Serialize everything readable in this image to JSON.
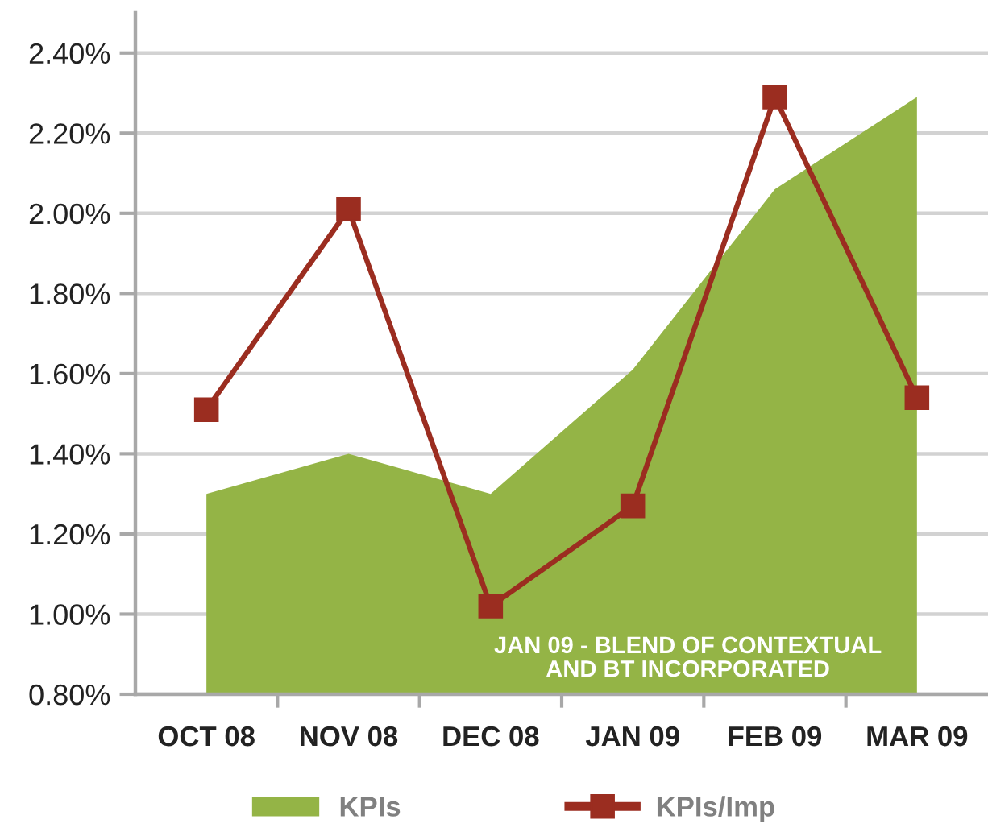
{
  "chart_data": {
    "type": "line",
    "categories": [
      "OCT 08",
      "NOV 08",
      "DEC 08",
      "JAN 09",
      "FEB 09",
      "MAR 09"
    ],
    "series": [
      {
        "name": "KPIs",
        "type": "area",
        "color": "#94b446",
        "values": [
          1.3,
          1.4,
          1.3,
          1.61,
          2.06,
          2.29
        ]
      },
      {
        "name": "KPIs/Imp",
        "color": "#9b2d20",
        "marker": "square",
        "line_style": "solid",
        "values": [
          1.51,
          2.01,
          1.02,
          1.27,
          2.29,
          1.54
        ]
      }
    ],
    "ylim": [
      0.8,
      2.5
    ],
    "yticks": [
      {
        "value": 0.8,
        "label": "0.80%"
      },
      {
        "value": 1.0,
        "label": "1.00%"
      },
      {
        "value": 1.2,
        "label": "1.20%"
      },
      {
        "value": 1.4,
        "label": "1.40%"
      },
      {
        "value": 1.6,
        "label": "1.60%"
      },
      {
        "value": 1.8,
        "label": "1.80%"
      },
      {
        "value": 2.0,
        "label": "2.00%"
      },
      {
        "value": 2.2,
        "label": "2.20%"
      },
      {
        "value": 2.4,
        "label": "2.40%"
      }
    ],
    "grid": "y",
    "legend": "bottom",
    "annotations": [
      "JAN 09 - BLEND OF CONTEXTUAL\nAND BT INCORPORATED"
    ]
  }
}
